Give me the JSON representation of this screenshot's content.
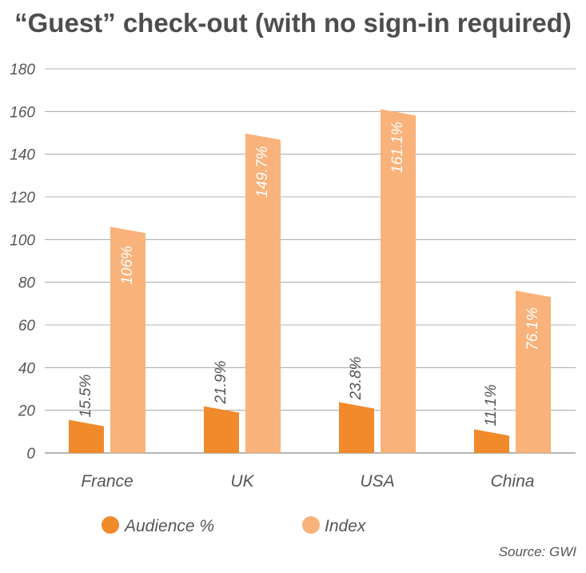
{
  "title": "“Guest” check-out (with no sign-in required)",
  "source": "Source: GWI",
  "chart_data": {
    "type": "bar",
    "categories": [
      "France",
      "UK",
      "USA",
      "China"
    ],
    "series": [
      {
        "name": "Audience %",
        "values": [
          15.5,
          21.9,
          23.8,
          11.1
        ],
        "labels": [
          "15.5%",
          "21.9%",
          "23.8%",
          "11.1%"
        ],
        "color": "#f08a2a"
      },
      {
        "name": "Index",
        "values": [
          106,
          149.7,
          161.1,
          76.1
        ],
        "labels": [
          "106%",
          "149.7%",
          "161.1%",
          "76.1%"
        ],
        "color": "#f9b27a"
      }
    ],
    "ylim": [
      0,
      180
    ],
    "yticks": [
      0,
      20,
      40,
      60,
      80,
      100,
      120,
      140,
      160,
      180
    ],
    "grid": true,
    "legend": "bottom"
  }
}
